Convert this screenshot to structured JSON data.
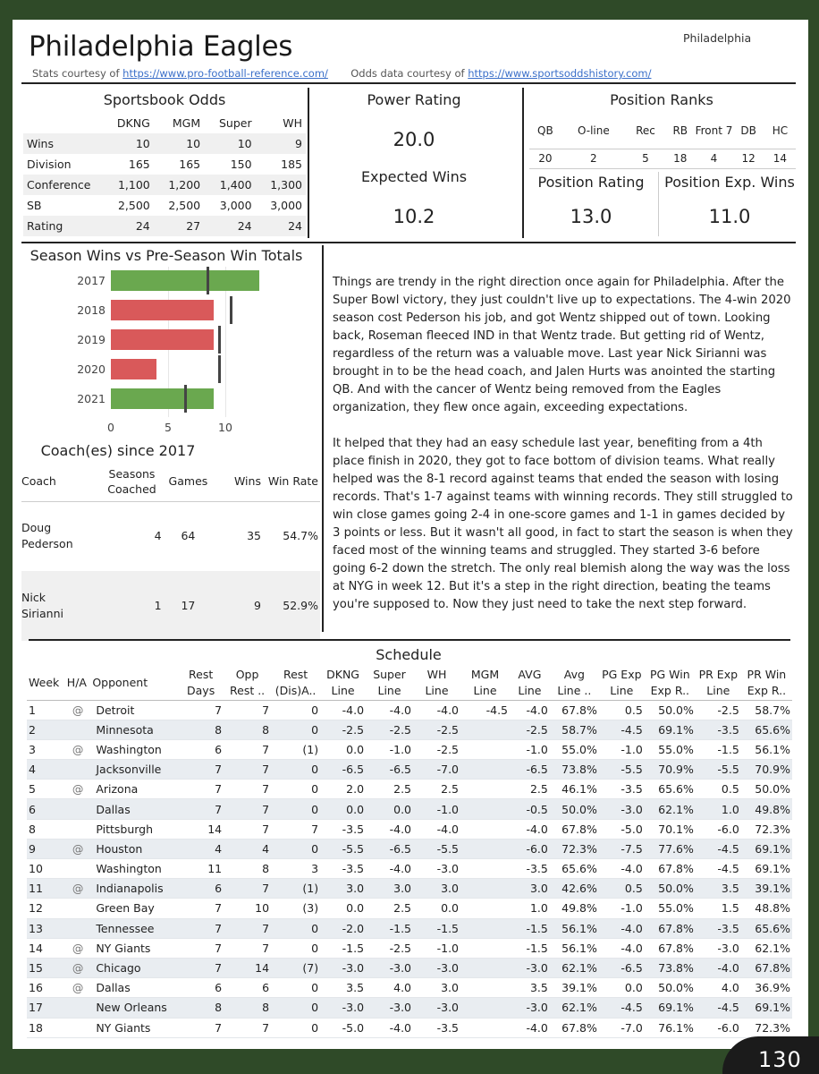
{
  "header": {
    "title": "Philadelphia Eagles",
    "team_label": "Philadelphia",
    "stats_prefix": "Stats courtesy of ",
    "stats_url": "https://www.pro-football-reference.com/",
    "odds_prefix": "Odds data courtesy of ",
    "odds_url": "https://www.sportsoddshistory.com/"
  },
  "odds": {
    "title": "Sportsbook Odds",
    "columns": [
      "DKNG",
      "MGM",
      "Super",
      "WH"
    ],
    "rows": [
      {
        "label": "Wins",
        "values": [
          "10",
          "10",
          "10",
          "9"
        ]
      },
      {
        "label": "Division",
        "values": [
          "165",
          "165",
          "150",
          "185"
        ]
      },
      {
        "label": "Conference",
        "values": [
          "1,100",
          "1,200",
          "1,400",
          "1,300"
        ]
      },
      {
        "label": "SB",
        "values": [
          "2,500",
          "2,500",
          "3,000",
          "3,000"
        ]
      },
      {
        "label": "Rating",
        "values": [
          "24",
          "27",
          "24",
          "24"
        ]
      }
    ]
  },
  "power": {
    "title": "Power Rating",
    "value": "20.0",
    "exp_title": "Expected Wins",
    "exp_value": "10.2"
  },
  "ranks": {
    "title": "Position Ranks",
    "columns": [
      "QB",
      "O-line",
      "Rec",
      "RB",
      "Front 7",
      "DB",
      "HC"
    ],
    "values": [
      "20",
      "2",
      "5",
      "18",
      "4",
      "12",
      "14"
    ],
    "rating_title": "Position Rating",
    "rating_value": "13.0",
    "exp_title": "Position Exp. Wins",
    "exp_value": "11.0"
  },
  "chart_data": {
    "type": "bar",
    "title": "Season Wins vs Pre-Season Win Totals",
    "categories": [
      "2017",
      "2018",
      "2019",
      "2020",
      "2021"
    ],
    "values": [
      13,
      9,
      9,
      4,
      9
    ],
    "win_totals": [
      8.5,
      10.5,
      9.5,
      9.5,
      6.5
    ],
    "bar_colors": [
      "#6aa84f",
      "#d9595a",
      "#d9595a",
      "#d9595a",
      "#6aa84f"
    ],
    "xticks": [
      "0",
      "5",
      "10"
    ],
    "xlim": [
      0,
      14
    ]
  },
  "coach": {
    "title": "Coach(es) since 2017",
    "columns": [
      "Coach",
      "Seasons Coached",
      "Games",
      "Wins",
      "Win Rate"
    ],
    "rows": [
      {
        "name": "Doug Pederson",
        "seasons": "4",
        "games": "64",
        "wins": "35",
        "rate": "54.7%"
      },
      {
        "name": "Nick Sirianni",
        "seasons": "1",
        "games": "17",
        "wins": "9",
        "rate": "52.9%"
      }
    ]
  },
  "narrative": {
    "p1": "Things are trendy in the right direction once again for Philadelphia.  After the Super Bowl victory, they just couldn't live up to expectations.  The 4-win 2020 season cost Pederson his job, and got Wentz shipped out of town.  Looking back, Roseman fleeced IND in that Wentz trade.  But getting rid of Wentz, regardless of the return was a valuable move.  Last year Nick Sirianni was brought in to be the head coach, and Jalen Hurts was anointed the starting QB.  And with the cancer of Wentz being removed from the Eagles organization, they flew once again, exceeding expectations.",
    "p2": "It helped that they had an easy schedule last year, benefiting from a 4th place finish in 2020, they got to face bottom of division teams.  What really helped was the 8-1 record against teams that ended the season with losing records.  That's 1-7 against teams with winning records.  They still struggled to win close games going 2-4 in one-score games and 1-1 in games decided by 3 points or less.  But it wasn't all good, in fact to start the season is when they faced most of the winning teams and struggled.  They started 3-6 before going 6-2 down the stretch.  The only real blemish along the way was the loss at NYG in week 12.  But it's a step in the right direction, beating the teams you're supposed to.  Now they just need to take the next step forward."
  },
  "schedule": {
    "title": "Schedule",
    "columns": [
      "Week",
      "H/A",
      "Opponent",
      "Rest Days",
      "Opp Rest ..",
      "Rest (Dis)A..",
      "DKNG Line",
      "Super Line",
      "WH Line",
      "MGM Line",
      "AVG Line",
      "Avg Line ..",
      "PG Exp Line",
      "PG Win Exp R..",
      "PR Exp Line",
      "PR Win Exp R.."
    ],
    "rows": [
      [
        "1",
        "@",
        "Detroit",
        "7",
        "7",
        "0",
        "-4.0",
        "-4.0",
        "-4.0",
        "-4.5",
        "-4.0",
        "67.8%",
        "0.5",
        "50.0%",
        "-2.5",
        "58.7%"
      ],
      [
        "2",
        "",
        "Minnesota",
        "8",
        "8",
        "0",
        "-2.5",
        "-2.5",
        "-2.5",
        "",
        "-2.5",
        "58.7%",
        "-4.5",
        "69.1%",
        "-3.5",
        "65.6%"
      ],
      [
        "3",
        "@",
        "Washington",
        "6",
        "7",
        "(1)",
        "0.0",
        "-1.0",
        "-2.5",
        "",
        "-1.0",
        "55.0%",
        "-1.0",
        "55.0%",
        "-1.5",
        "56.1%"
      ],
      [
        "4",
        "",
        "Jacksonville",
        "7",
        "7",
        "0",
        "-6.5",
        "-6.5",
        "-7.0",
        "",
        "-6.5",
        "73.8%",
        "-5.5",
        "70.9%",
        "-5.5",
        "70.9%"
      ],
      [
        "5",
        "@",
        "Arizona",
        "7",
        "7",
        "0",
        "2.0",
        "2.5",
        "2.5",
        "",
        "2.5",
        "46.1%",
        "-3.5",
        "65.6%",
        "0.5",
        "50.0%"
      ],
      [
        "6",
        "",
        "Dallas",
        "7",
        "7",
        "0",
        "0.0",
        "0.0",
        "-1.0",
        "",
        "-0.5",
        "50.0%",
        "-3.0",
        "62.1%",
        "1.0",
        "49.8%"
      ],
      [
        "8",
        "",
        "Pittsburgh",
        "14",
        "7",
        "7",
        "-3.5",
        "-4.0",
        "-4.0",
        "",
        "-4.0",
        "67.8%",
        "-5.0",
        "70.1%",
        "-6.0",
        "72.3%"
      ],
      [
        "9",
        "@",
        "Houston",
        "4",
        "4",
        "0",
        "-5.5",
        "-6.5",
        "-5.5",
        "",
        "-6.0",
        "72.3%",
        "-7.5",
        "77.6%",
        "-4.5",
        "69.1%"
      ],
      [
        "10",
        "",
        "Washington",
        "11",
        "8",
        "3",
        "-3.5",
        "-4.0",
        "-3.0",
        "",
        "-3.5",
        "65.6%",
        "-4.0",
        "67.8%",
        "-4.5",
        "69.1%"
      ],
      [
        "11",
        "@",
        "Indianapolis",
        "6",
        "7",
        "(1)",
        "3.0",
        "3.0",
        "3.0",
        "",
        "3.0",
        "42.6%",
        "0.5",
        "50.0%",
        "3.5",
        "39.1%"
      ],
      [
        "12",
        "",
        "Green Bay",
        "7",
        "10",
        "(3)",
        "0.0",
        "2.5",
        "0.0",
        "",
        "1.0",
        "49.8%",
        "-1.0",
        "55.0%",
        "1.5",
        "48.8%"
      ],
      [
        "13",
        "",
        "Tennessee",
        "7",
        "7",
        "0",
        "-2.0",
        "-1.5",
        "-1.5",
        "",
        "-1.5",
        "56.1%",
        "-4.0",
        "67.8%",
        "-3.5",
        "65.6%"
      ],
      [
        "14",
        "@",
        "NY Giants",
        "7",
        "7",
        "0",
        "-1.5",
        "-2.5",
        "-1.0",
        "",
        "-1.5",
        "56.1%",
        "-4.0",
        "67.8%",
        "-3.0",
        "62.1%"
      ],
      [
        "15",
        "@",
        "Chicago",
        "7",
        "14",
        "(7)",
        "-3.0",
        "-3.0",
        "-3.0",
        "",
        "-3.0",
        "62.1%",
        "-6.5",
        "73.8%",
        "-4.0",
        "67.8%"
      ],
      [
        "16",
        "@",
        "Dallas",
        "6",
        "6",
        "0",
        "3.5",
        "4.0",
        "3.0",
        "",
        "3.5",
        "39.1%",
        "0.0",
        "50.0%",
        "4.0",
        "36.9%"
      ],
      [
        "17",
        "",
        "New Orleans",
        "8",
        "8",
        "0",
        "-3.0",
        "-3.0",
        "-3.0",
        "",
        "-3.0",
        "62.1%",
        "-4.5",
        "69.1%",
        "-4.5",
        "69.1%"
      ],
      [
        "18",
        "",
        "NY Giants",
        "7",
        "7",
        "0",
        "-5.0",
        "-4.0",
        "-3.5",
        "",
        "-4.0",
        "67.8%",
        "-7.0",
        "76.1%",
        "-6.0",
        "72.3%"
      ]
    ]
  },
  "page_number": "130"
}
